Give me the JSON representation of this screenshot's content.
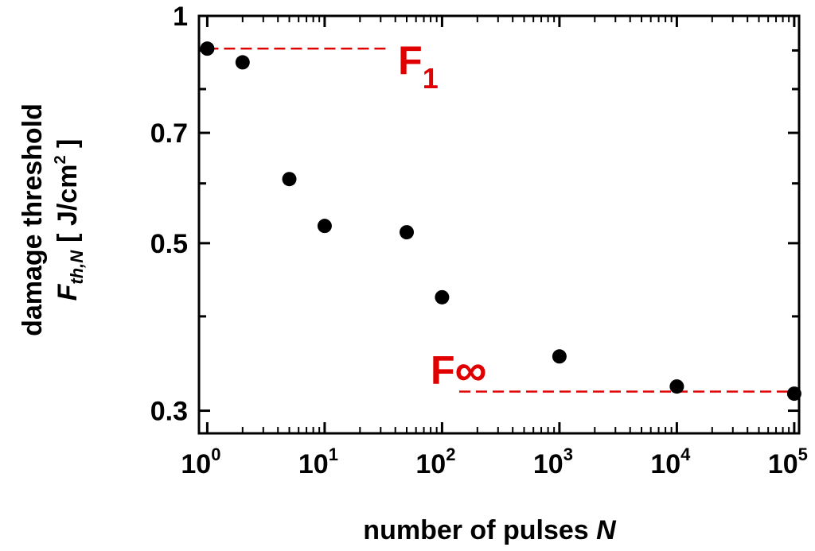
{
  "chart_data": {
    "type": "scatter",
    "xscale": "log",
    "yscale": "log",
    "xlim": [
      0.85,
      110000
    ],
    "ylim": [
      0.28,
      1.0
    ],
    "grid": false,
    "xlabel": "number of pulses N",
    "xlabel_parts": {
      "main": "number of pulses",
      "italic": "N"
    },
    "ylabel": "damage threshold F th,N [ J/cm² ]",
    "ylabel_lines": {
      "line1": "damage threshold",
      "symbol": "F",
      "subscript": "th,N",
      "unit_open": "[ J/cm",
      "unit_exp": "2",
      "unit_close": " ]"
    },
    "yticks": [
      {
        "value": 1.0,
        "label": "1"
      },
      {
        "value": 0.9,
        "label": ""
      },
      {
        "value": 0.8,
        "label": ""
      },
      {
        "value": 0.7,
        "label": "0.7"
      },
      {
        "value": 0.6,
        "label": ""
      },
      {
        "value": 0.5,
        "label": "0.5"
      },
      {
        "value": 0.4,
        "label": ""
      },
      {
        "value": 0.3,
        "label": "0.3"
      }
    ],
    "xticks": [
      {
        "value": 1,
        "base": "10",
        "exp": "0"
      },
      {
        "value": 10,
        "base": "10",
        "exp": "1"
      },
      {
        "value": 100,
        "base": "10",
        "exp": "2"
      },
      {
        "value": 1000,
        "base": "10",
        "exp": "3"
      },
      {
        "value": 10000,
        "base": "10",
        "exp": "4"
      },
      {
        "value": 100000,
        "base": "10",
        "exp": "5"
      }
    ],
    "points": [
      {
        "x": 1,
        "y": 0.905
      },
      {
        "x": 2,
        "y": 0.868
      },
      {
        "x": 5,
        "y": 0.608
      },
      {
        "x": 10,
        "y": 0.527
      },
      {
        "x": 50,
        "y": 0.517
      },
      {
        "x": 100,
        "y": 0.424
      },
      {
        "x": 1000,
        "y": 0.354
      },
      {
        "x": 10000,
        "y": 0.323
      },
      {
        "x": 100000,
        "y": 0.316
      }
    ],
    "annotations": [
      {
        "label": "F",
        "subscript": "1",
        "y": 0.905,
        "x_from": 1,
        "x_to": 35,
        "style": "dashed"
      },
      {
        "label": "F",
        "subscript": "∞",
        "y": 0.318,
        "x_from": 140,
        "x_to": 100000,
        "style": "dashed"
      }
    ],
    "colors": {
      "points": "#000000",
      "annotation": "#e00000",
      "axis": "#000000"
    }
  }
}
